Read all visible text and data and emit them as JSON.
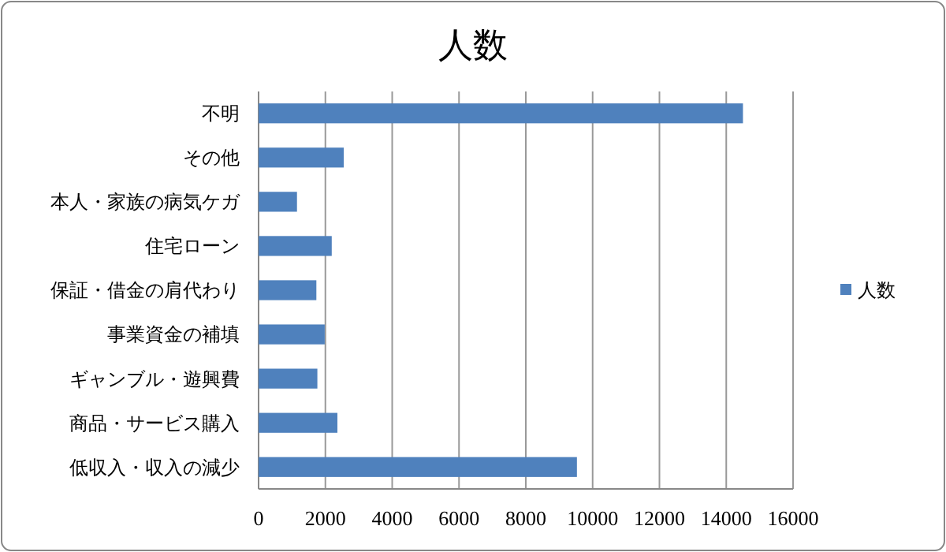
{
  "chart_data": {
    "type": "bar",
    "title": "人数",
    "orientation": "horizontal",
    "categories": [
      "不明",
      "その他",
      "本人・家族の病気ケガ",
      "住宅ローン",
      "保証・借金の肩代わり",
      "事業資金の補填",
      "ギャンブル・遊興費",
      "商品・サービス購入",
      "低収入・収入の減少"
    ],
    "series": [
      {
        "name": "人数",
        "color": "#4f81bd",
        "values": [
          14500,
          2550,
          1150,
          2190,
          1730,
          1980,
          1760,
          2360,
          9530
        ]
      }
    ],
    "xlim": [
      0,
      16000
    ],
    "xticks": [
      0,
      2000,
      4000,
      6000,
      8000,
      10000,
      12000,
      14000,
      16000
    ],
    "grid": "x",
    "legend": "right"
  }
}
